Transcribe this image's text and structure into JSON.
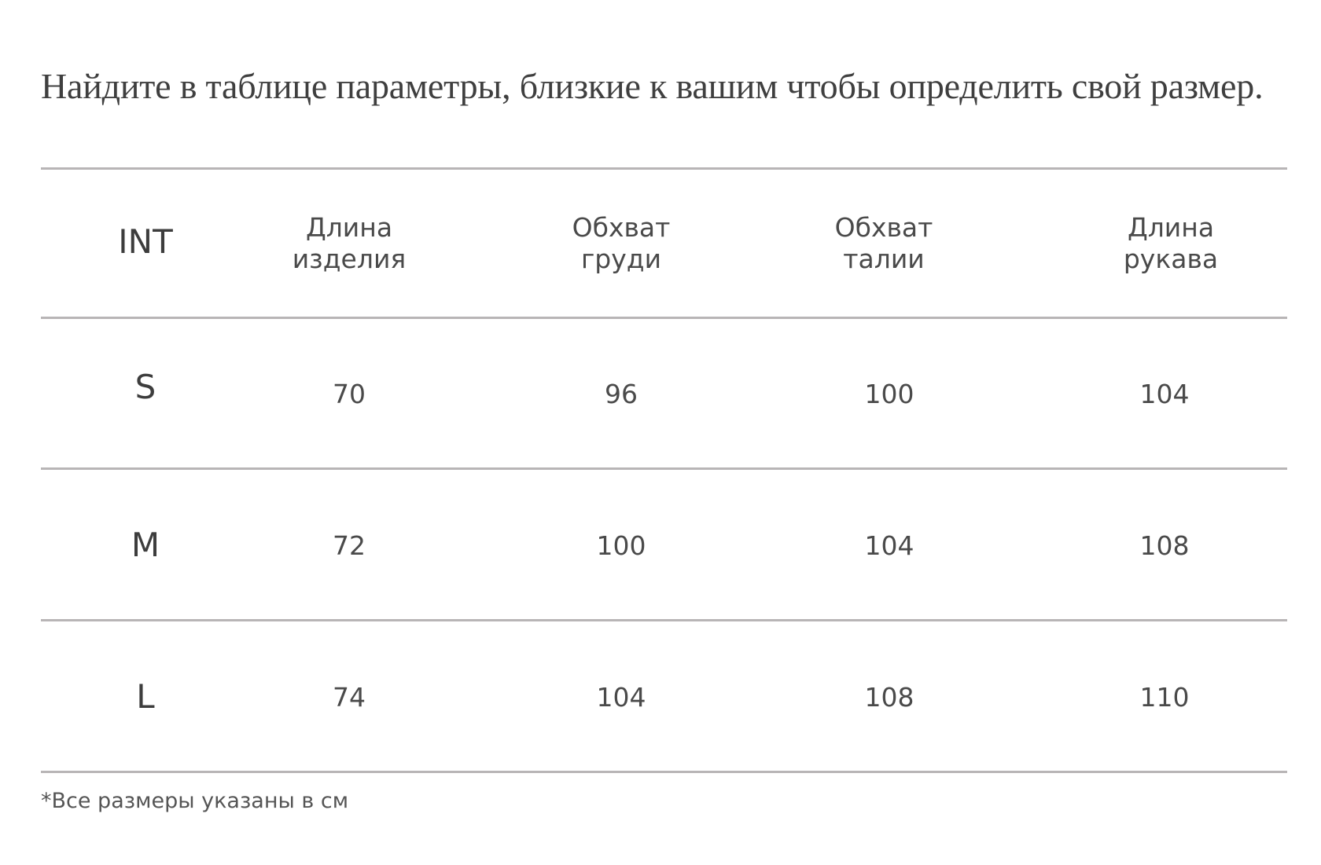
{
  "intro": "Найдите в таблице параметры, близкие к вашим чтобы определить свой размер.",
  "table": {
    "headers": {
      "int": "INT",
      "length": [
        "Длина",
        "изделия"
      ],
      "chest": [
        "Обхват",
        "груди"
      ],
      "waist": [
        "Обхват",
        "талии"
      ],
      "sleeve": [
        "Длина",
        "рукава"
      ]
    },
    "rows": [
      {
        "size": "S",
        "length": "70",
        "chest": "96",
        "waist": "100",
        "sleeve": "104"
      },
      {
        "size": "M",
        "length": "72",
        "chest": "100",
        "waist": "104",
        "sleeve": "108"
      },
      {
        "size": "L",
        "length": "74",
        "chest": "104",
        "waist": "108",
        "sleeve": "110"
      }
    ]
  },
  "footnote": "*Все размеры указаны в см"
}
